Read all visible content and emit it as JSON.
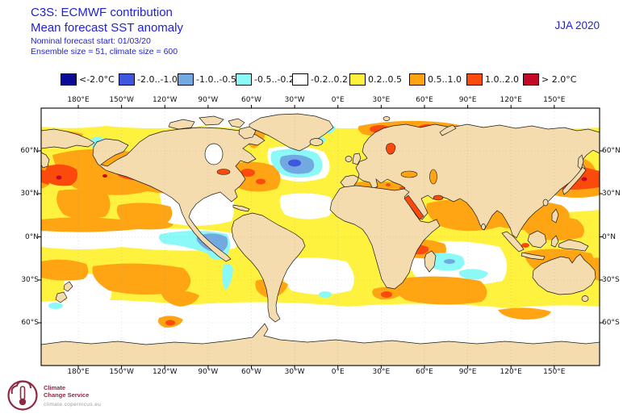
{
  "title": {
    "line1": "C3S: ECMWF contribution",
    "line2": "Mean forecast SST anomaly",
    "line3": "Nominal forecast start: 01/03/20",
    "line4": "Ensemble size = 51, climate size = 600"
  },
  "season_label": "JJA 2020",
  "colors": {
    "header_text": "#1F1FD4",
    "land": "#F5DCAF",
    "coastline": "#1a1a1a",
    "ocean_neutral": "#FFFFFF"
  },
  "legend": {
    "items": [
      {
        "label": "<-2.0°C",
        "color": "#0A0A96"
      },
      {
        "label": "-2.0..-1.0",
        "color": "#3E56E0"
      },
      {
        "label": "-1.0..-0.5",
        "color": "#72A9E0"
      },
      {
        "label": "-0.5..-0.2",
        "color": "#8CF9F9"
      },
      {
        "label": "-0.2..0.2",
        "color": "#FFFFFF"
      },
      {
        "label": "0.2..0.5",
        "color": "#FFF23F"
      },
      {
        "label": "0.5..1.0",
        "color": "#FFA413"
      },
      {
        "label": "1.0..2.0",
        "color": "#FC4A0D"
      },
      {
        "label": "> 2.0°C",
        "color": "#C40828"
      }
    ]
  },
  "map": {
    "top_axis": [
      "180°E",
      "150°W",
      "120°W",
      "90°W",
      "60°W",
      "30°W",
      "0°E",
      "30°E",
      "60°E",
      "90°E",
      "120°E",
      "150°E"
    ],
    "bottom_axis": [
      "180°E",
      "150°W",
      "120°W",
      "90°W",
      "60°W",
      "30°W",
      "0°E",
      "30°E",
      "60°E",
      "90°E",
      "120°E",
      "150°E"
    ],
    "left_axis": [
      "60°N",
      "30°N",
      "0°N",
      "30°S",
      "60°S"
    ],
    "right_axis": [
      "60°N",
      "30°N",
      "0°N",
      "30°S",
      "60°S"
    ]
  },
  "logo": {
    "brand_line1": "Climate",
    "brand_line2": "Change Service",
    "url": "climate.copernicus.eu"
  },
  "chart_data": {
    "type": "heatmap",
    "subtype": "filled-contour world map of sea-surface-temperature anomaly",
    "title": "Mean forecast SST anomaly",
    "source": "C3S: ECMWF contribution",
    "season": "JJA 2020",
    "forecast_start": "01/03/20",
    "ensemble_size": 51,
    "climate_size": 600,
    "units": "°C",
    "scale_bins": [
      "<-2.0",
      "-2.0..-1.0",
      "-1.0..-0.5",
      "-0.5..-0.2",
      "-0.2..0.2",
      "0.2..0.5",
      "0.5..1.0",
      "1.0..2.0",
      ">2.0"
    ],
    "lon_ticks": [
      "180°E",
      "150°W",
      "120°W",
      "90°W",
      "60°W",
      "30°W",
      "0°E",
      "30°E",
      "60°E",
      "90°E",
      "120°E",
      "150°E"
    ],
    "lat_ticks": [
      "60°N",
      "30°N",
      "0°N",
      "30°S",
      "60°S"
    ],
    "legend_position": "top",
    "grid": "dotted, every 30 degrees",
    "features": [
      {
        "region": "Central North Pacific 30-50N",
        "anomaly_C": "+1.0..2.0, small >2.0 specks"
      },
      {
        "region": "Kuroshio extension east of Japan",
        "anomaly_C": "+1.0..2.0, >2.0 specks"
      },
      {
        "region": "Bering Strait / Chukchi coast",
        "anomaly_C": "-0.5..-1.0 strait, +1.0..2.0 coast"
      },
      {
        "region": "Northeast Pacific off California",
        "anomaly_C": "-0.2..0.2"
      },
      {
        "region": "Equatorial East Pacific cold tongue",
        "anomaly_C": "-0.2..-0.5"
      },
      {
        "region": "Peru-Chile coastal waters",
        "anomaly_C": "-0.5..-1.0"
      },
      {
        "region": "Gulf Stream / NW Atlantic",
        "anomaly_C": "+0.5..2.0"
      },
      {
        "region": "Subpolar N Atlantic south of Greenland",
        "anomaly_C": "-0.5..-2.0 core"
      },
      {
        "region": "Norwegian / Barents / Kara Seas",
        "anomaly_C": "+0.5..2.0"
      },
      {
        "region": "Baltic Sea",
        "anomaly_C": "+1.0..2.0"
      },
      {
        "region": "Mediterranean and Black Sea",
        "anomaly_C": "+0.5..1.0"
      },
      {
        "region": "Red Sea / Persian Gulf",
        "anomaly_C": "+1.0..2.0"
      },
      {
        "region": "Tropical and North Indian Ocean",
        "anomaly_C": "+0.5..1.0, +1.0..2.0 streak near Somali coast"
      },
      {
        "region": "Central South Indian Ocean",
        "anomaly_C": "-0.2..-0.5 patches"
      },
      {
        "region": "Agulhas region south of Africa",
        "anomaly_C": "+1.0..2.0 spot"
      },
      {
        "region": "Subtropical South Pacific and South Indian bands",
        "anomaly_C": "+0.5..1.0"
      },
      {
        "region": "Southern Ocean 50-65S band",
        "anomaly_C": "-0.2..0.2"
      },
      {
        "region": "Most remaining open ocean",
        "anomaly_C": "+0.2..0.5"
      }
    ]
  }
}
